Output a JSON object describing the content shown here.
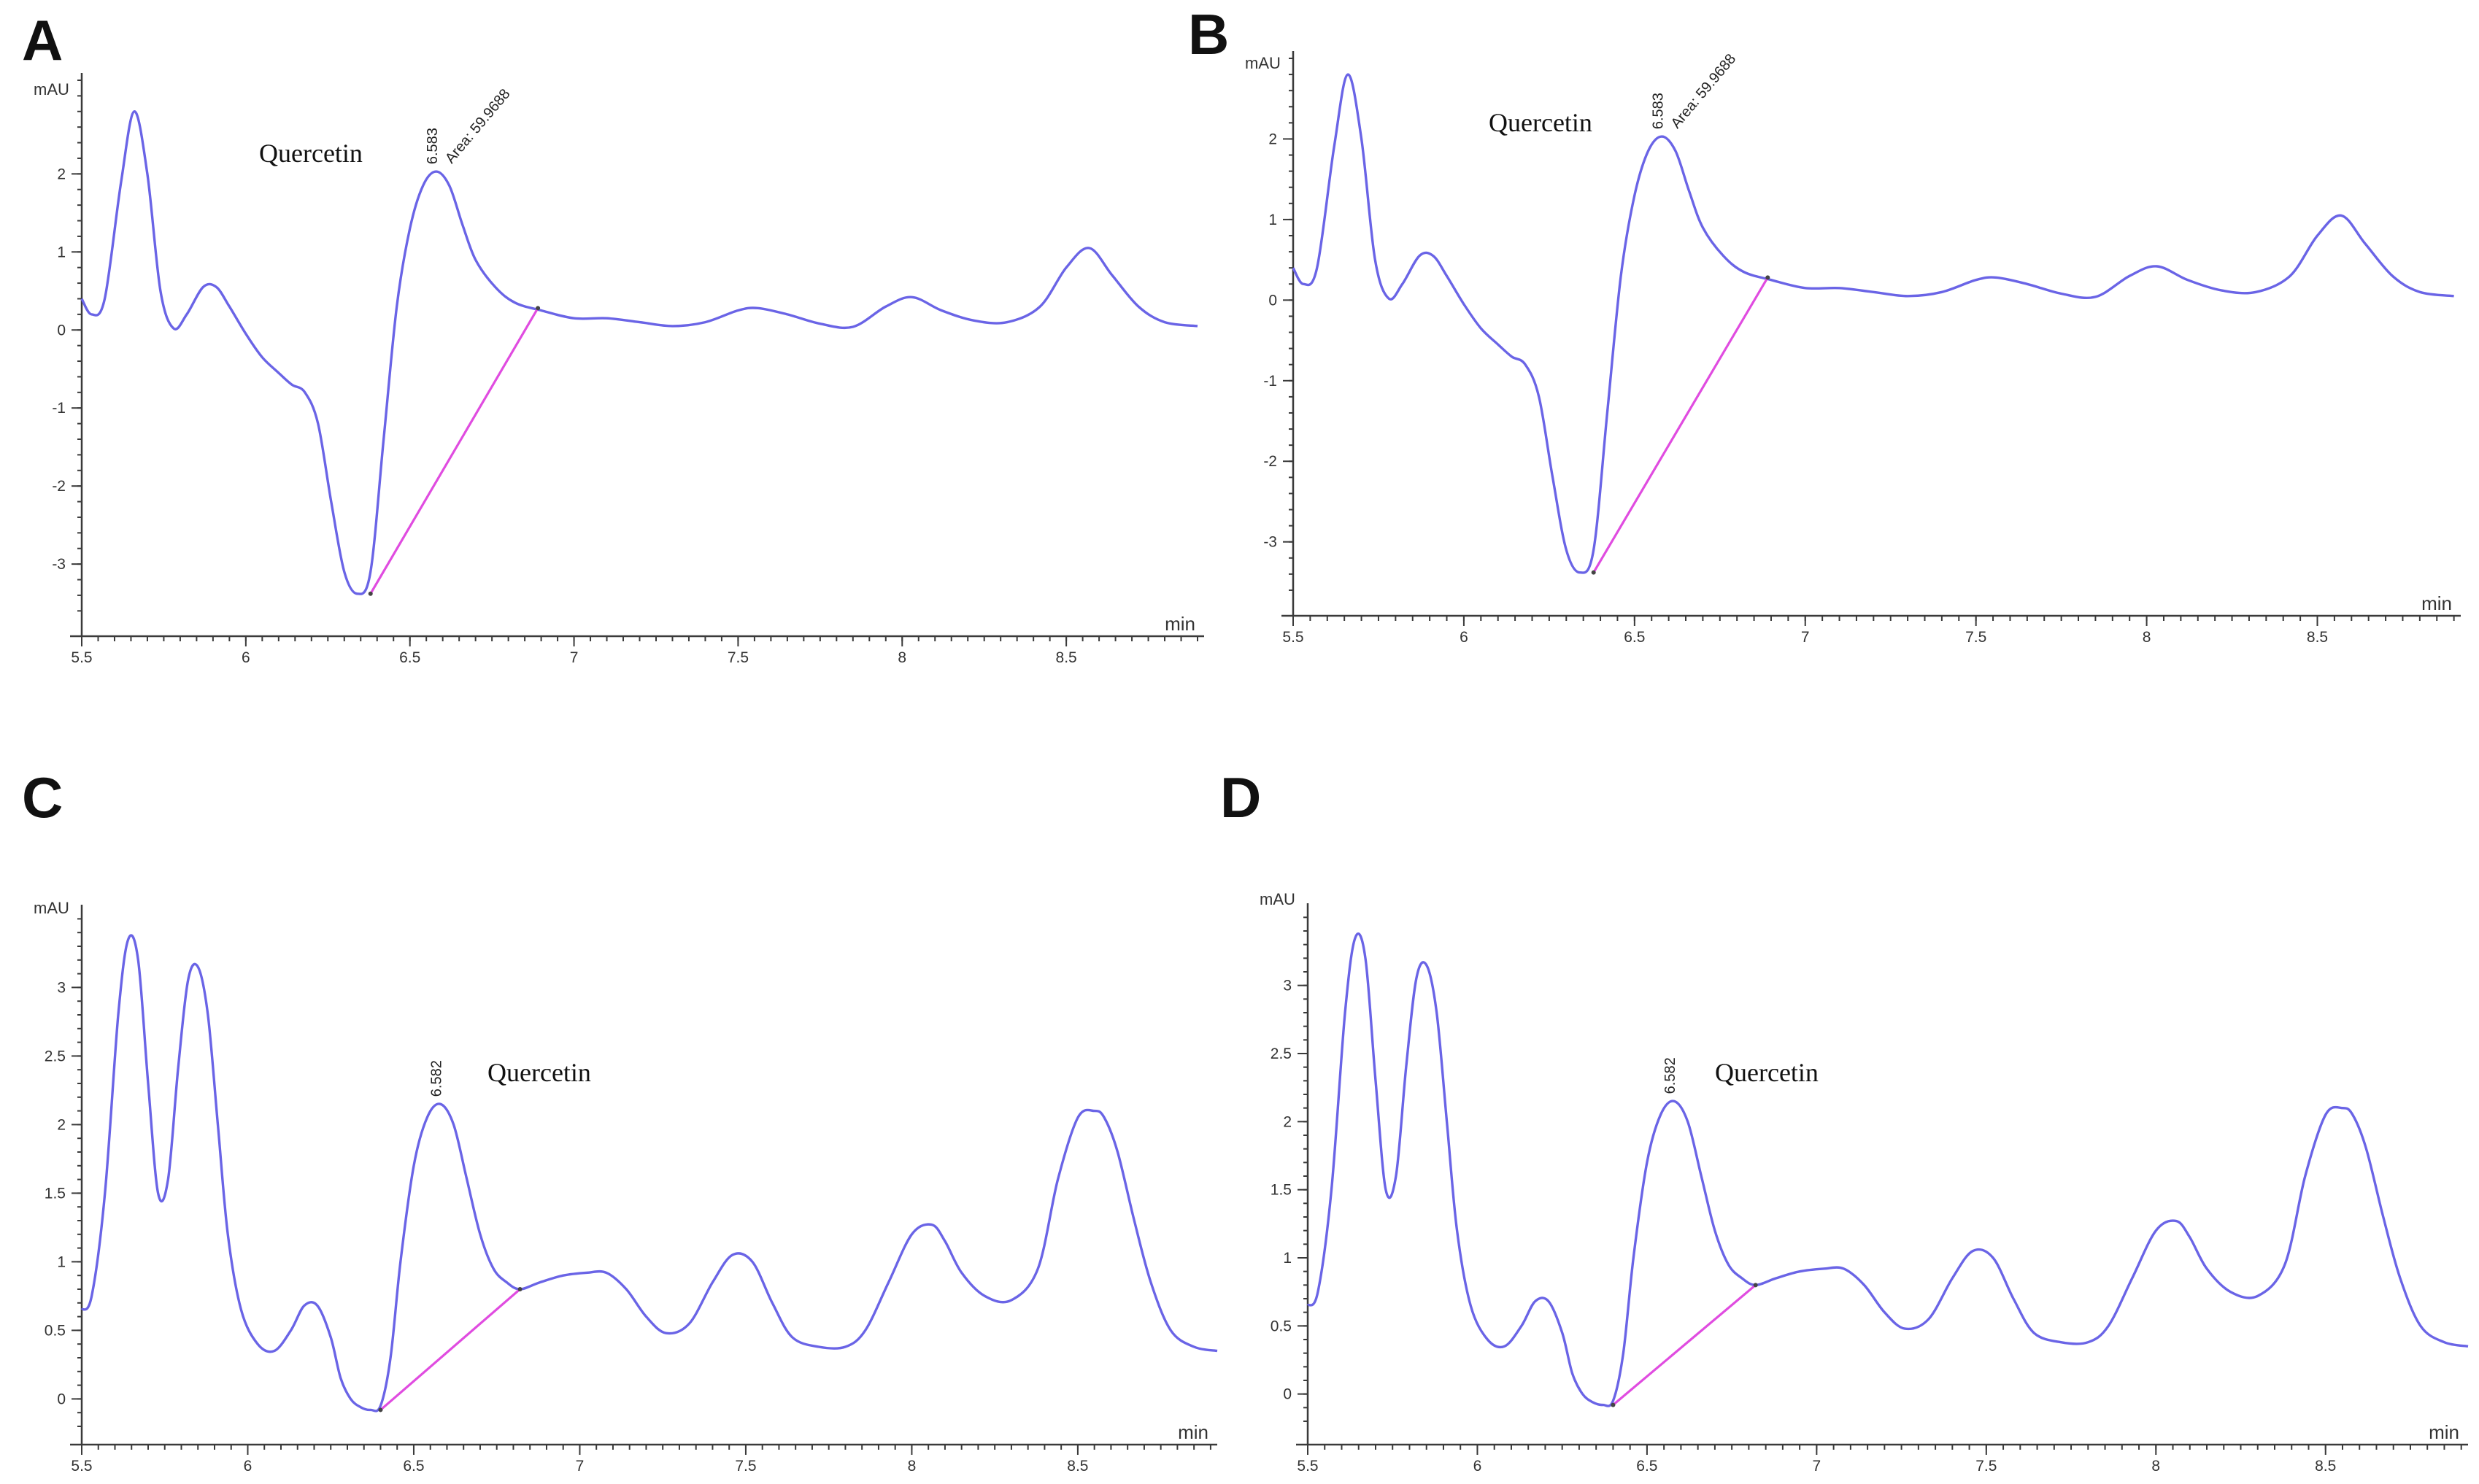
{
  "colors": {
    "trace": "#6a64e6",
    "baseline": "#e04ce0",
    "axis": "#3a3a3a"
  },
  "chart_data": [
    {
      "type": "line",
      "panel": "A",
      "ylabel": "mAU",
      "xlabel": "min",
      "xlim": [
        5.5,
        8.92
      ],
      "ylim": [
        -3.7,
        3.2
      ],
      "xticks": [
        5.5,
        6,
        6.5,
        7,
        7.5,
        8,
        8.5
      ],
      "xtick_labels": [
        "5.5",
        "6",
        "6.5",
        "7",
        "7.5",
        "8",
        "8.5"
      ],
      "yticks": [
        -3,
        -2,
        -1,
        0,
        1,
        2
      ],
      "ytick_labels": [
        "-3",
        "-2",
        "-1",
        "0",
        "1",
        "2"
      ],
      "annotation": "Quercetin",
      "peak_labels": [
        "6.583",
        "Area: 59.9688"
      ],
      "peak": {
        "x": 6.583,
        "y": 2.03
      },
      "integration_baseline": [
        [
          6.38,
          -3.38
        ],
        [
          6.89,
          0.28
        ]
      ],
      "series": [
        {
          "name": "trace",
          "x": [
            5.5,
            5.53,
            5.57,
            5.62,
            5.66,
            5.7,
            5.74,
            5.78,
            5.82,
            5.87,
            5.91,
            5.95,
            6.0,
            6.05,
            6.1,
            6.14,
            6.18,
            6.22,
            6.26,
            6.3,
            6.34,
            6.38,
            6.42,
            6.46,
            6.5,
            6.54,
            6.58,
            6.62,
            6.66,
            6.7,
            6.76,
            6.82,
            6.9,
            7.0,
            7.1,
            7.2,
            7.3,
            7.4,
            7.5,
            7.56,
            7.65,
            7.75,
            7.85,
            7.95,
            8.03,
            8.12,
            8.22,
            8.32,
            8.42,
            8.5,
            8.57,
            8.64,
            8.72,
            8.8,
            8.9
          ],
          "y": [
            0.4,
            0.2,
            0.4,
            1.9,
            2.8,
            2.0,
            0.5,
            0.02,
            0.2,
            0.55,
            0.55,
            0.3,
            -0.05,
            -0.35,
            -0.55,
            -0.7,
            -0.8,
            -1.2,
            -2.2,
            -3.1,
            -3.38,
            -3.1,
            -1.4,
            0.3,
            1.3,
            1.85,
            2.03,
            1.85,
            1.35,
            0.9,
            0.55,
            0.35,
            0.25,
            0.15,
            0.15,
            0.1,
            0.05,
            0.1,
            0.25,
            0.28,
            0.2,
            0.08,
            0.04,
            0.3,
            0.42,
            0.25,
            0.12,
            0.1,
            0.3,
            0.8,
            1.05,
            0.7,
            0.3,
            0.1,
            0.05
          ]
        }
      ]
    },
    {
      "type": "line",
      "panel": "B",
      "ylabel": "mAU",
      "xlabel": "min",
      "xlim": [
        5.5,
        8.92
      ],
      "ylim": [
        -3.7,
        3.0
      ],
      "xticks": [
        5.5,
        6,
        6.5,
        7,
        7.5,
        8,
        8.5
      ],
      "xtick_labels": [
        "5.5",
        "6",
        "6.5",
        "7",
        "7.5",
        "8",
        "8.5"
      ],
      "yticks": [
        -3,
        -2,
        -1,
        0,
        1,
        2
      ],
      "ytick_labels": [
        "-3",
        "-2",
        "-1",
        "0",
        "1",
        "2"
      ],
      "annotation": "Quercetin",
      "peak_labels": [
        "6.583",
        "Area: 59.9688"
      ],
      "peak": {
        "x": 6.583,
        "y": 2.03
      },
      "integration_baseline": [
        [
          6.38,
          -3.38
        ],
        [
          6.89,
          0.28
        ]
      ],
      "series": [
        {
          "name": "trace",
          "x": [
            5.5,
            5.53,
            5.57,
            5.62,
            5.66,
            5.7,
            5.74,
            5.78,
            5.82,
            5.87,
            5.91,
            5.95,
            6.0,
            6.05,
            6.1,
            6.14,
            6.18,
            6.22,
            6.26,
            6.3,
            6.34,
            6.38,
            6.42,
            6.46,
            6.5,
            6.54,
            6.58,
            6.62,
            6.66,
            6.7,
            6.76,
            6.82,
            6.9,
            7.0,
            7.1,
            7.2,
            7.3,
            7.4,
            7.5,
            7.56,
            7.65,
            7.75,
            7.85,
            7.95,
            8.03,
            8.12,
            8.22,
            8.32,
            8.42,
            8.5,
            8.57,
            8.64,
            8.72,
            8.8,
            8.9
          ],
          "y": [
            0.4,
            0.2,
            0.4,
            1.9,
            2.8,
            2.0,
            0.5,
            0.02,
            0.2,
            0.55,
            0.55,
            0.3,
            -0.05,
            -0.35,
            -0.55,
            -0.7,
            -0.8,
            -1.2,
            -2.2,
            -3.1,
            -3.38,
            -3.1,
            -1.4,
            0.3,
            1.3,
            1.85,
            2.03,
            1.85,
            1.35,
            0.9,
            0.55,
            0.35,
            0.25,
            0.15,
            0.15,
            0.1,
            0.05,
            0.1,
            0.25,
            0.28,
            0.2,
            0.08,
            0.04,
            0.3,
            0.42,
            0.25,
            0.12,
            0.1,
            0.3,
            0.8,
            1.05,
            0.7,
            0.3,
            0.1,
            0.05
          ]
        }
      ]
    },
    {
      "type": "line",
      "panel": "C",
      "ylabel": "mAU",
      "xlabel": "min",
      "xlim": [
        5.5,
        8.92
      ],
      "ylim": [
        -0.2,
        3.55
      ],
      "xticks": [
        5.5,
        6,
        6.5,
        7,
        7.5,
        8,
        8.5
      ],
      "xtick_labels": [
        "5.5",
        "6",
        "6.5",
        "7",
        "7.5",
        "8",
        "8.5"
      ],
      "yticks": [
        0,
        0.5,
        1,
        1.5,
        2,
        2.5,
        3
      ],
      "ytick_labels": [
        "0",
        "0.5",
        "1",
        "1.5",
        "2",
        "2.5",
        "3"
      ],
      "annotation": "Quercetin",
      "peak_labels": [
        "6.582"
      ],
      "peak": {
        "x": 6.582,
        "y": 2.15
      },
      "integration_baseline": [
        [
          6.4,
          -0.08
        ],
        [
          6.82,
          0.8
        ]
      ],
      "series": [
        {
          "name": "trace",
          "x": [
            5.5,
            5.53,
            5.57,
            5.61,
            5.64,
            5.67,
            5.7,
            5.73,
            5.76,
            5.79,
            5.82,
            5.85,
            5.88,
            5.91,
            5.94,
            5.98,
            6.03,
            6.08,
            6.13,
            6.17,
            6.21,
            6.25,
            6.28,
            6.31,
            6.34,
            6.37,
            6.4,
            6.43,
            6.46,
            6.5,
            6.54,
            6.58,
            6.62,
            6.66,
            6.7,
            6.74,
            6.78,
            6.82,
            6.88,
            6.95,
            7.02,
            7.08,
            7.14,
            7.2,
            7.26,
            7.33,
            7.4,
            7.46,
            7.52,
            7.58,
            7.64,
            7.72,
            7.8,
            7.86,
            7.93,
            8.0,
            8.06,
            8.1,
            8.15,
            8.22,
            8.3,
            8.38,
            8.44,
            8.5,
            8.55,
            8.58,
            8.62,
            8.67,
            8.72,
            8.78,
            8.85,
            8.92
          ],
          "y": [
            0.65,
            0.75,
            1.5,
            2.8,
            3.35,
            3.2,
            2.3,
            1.5,
            1.6,
            2.4,
            3.05,
            3.15,
            2.8,
            2.0,
            1.2,
            0.65,
            0.4,
            0.35,
            0.5,
            0.68,
            0.68,
            0.45,
            0.15,
            0.0,
            -0.06,
            -0.08,
            -0.05,
            0.3,
            1.0,
            1.7,
            2.05,
            2.15,
            2.0,
            1.6,
            1.2,
            0.95,
            0.85,
            0.8,
            0.85,
            0.9,
            0.92,
            0.92,
            0.8,
            0.6,
            0.48,
            0.55,
            0.85,
            1.05,
            1.0,
            0.7,
            0.45,
            0.38,
            0.38,
            0.5,
            0.85,
            1.2,
            1.27,
            1.15,
            0.92,
            0.75,
            0.72,
            0.95,
            1.6,
            2.05,
            2.1,
            2.05,
            1.8,
            1.3,
            0.85,
            0.5,
            0.38,
            0.35
          ]
        }
      ]
    },
    {
      "type": "line",
      "panel": "D",
      "ylabel": "mAU",
      "xlabel": "min",
      "xlim": [
        5.5,
        8.92
      ],
      "ylim": [
        -0.2,
        3.55
      ],
      "xticks": [
        5.5,
        6,
        6.5,
        7,
        7.5,
        8,
        8.5
      ],
      "xtick_labels": [
        "5.5",
        "6",
        "6.5",
        "7",
        "7.5",
        "8",
        "8.5"
      ],
      "yticks": [
        0,
        0.5,
        1,
        1.5,
        2,
        2.5,
        3
      ],
      "ytick_labels": [
        "0",
        "0.5",
        "1",
        "1.5",
        "2",
        "2.5",
        "3"
      ],
      "annotation": "Quercetin",
      "peak_labels": [
        "6.582"
      ],
      "peak": {
        "x": 6.582,
        "y": 2.15
      },
      "integration_baseline": [
        [
          6.4,
          -0.08
        ],
        [
          6.82,
          0.8
        ]
      ],
      "series": [
        {
          "name": "trace",
          "x": [
            5.5,
            5.53,
            5.57,
            5.61,
            5.64,
            5.67,
            5.7,
            5.73,
            5.76,
            5.79,
            5.82,
            5.85,
            5.88,
            5.91,
            5.94,
            5.98,
            6.03,
            6.08,
            6.13,
            6.17,
            6.21,
            6.25,
            6.28,
            6.31,
            6.34,
            6.37,
            6.4,
            6.43,
            6.46,
            6.5,
            6.54,
            6.58,
            6.62,
            6.66,
            6.7,
            6.74,
            6.78,
            6.82,
            6.88,
            6.95,
            7.02,
            7.08,
            7.14,
            7.2,
            7.26,
            7.33,
            7.4,
            7.46,
            7.52,
            7.58,
            7.64,
            7.72,
            7.8,
            7.86,
            7.93,
            8.0,
            8.06,
            8.1,
            8.15,
            8.22,
            8.3,
            8.38,
            8.44,
            8.5,
            8.55,
            8.58,
            8.62,
            8.67,
            8.72,
            8.78,
            8.85,
            8.92
          ],
          "y": [
            0.65,
            0.75,
            1.5,
            2.8,
            3.35,
            3.2,
            2.3,
            1.5,
            1.6,
            2.4,
            3.05,
            3.15,
            2.8,
            2.0,
            1.2,
            0.65,
            0.4,
            0.35,
            0.5,
            0.68,
            0.68,
            0.45,
            0.15,
            0.0,
            -0.06,
            -0.08,
            -0.05,
            0.3,
            1.0,
            1.7,
            2.05,
            2.15,
            2.0,
            1.6,
            1.2,
            0.95,
            0.85,
            0.8,
            0.85,
            0.9,
            0.92,
            0.92,
            0.8,
            0.6,
            0.48,
            0.55,
            0.85,
            1.05,
            1.0,
            0.7,
            0.45,
            0.38,
            0.38,
            0.5,
            0.85,
            1.2,
            1.27,
            1.15,
            0.92,
            0.75,
            0.72,
            0.95,
            1.6,
            2.05,
            2.1,
            2.05,
            1.8,
            1.3,
            0.85,
            0.5,
            0.38,
            0.35
          ]
        }
      ]
    }
  ]
}
